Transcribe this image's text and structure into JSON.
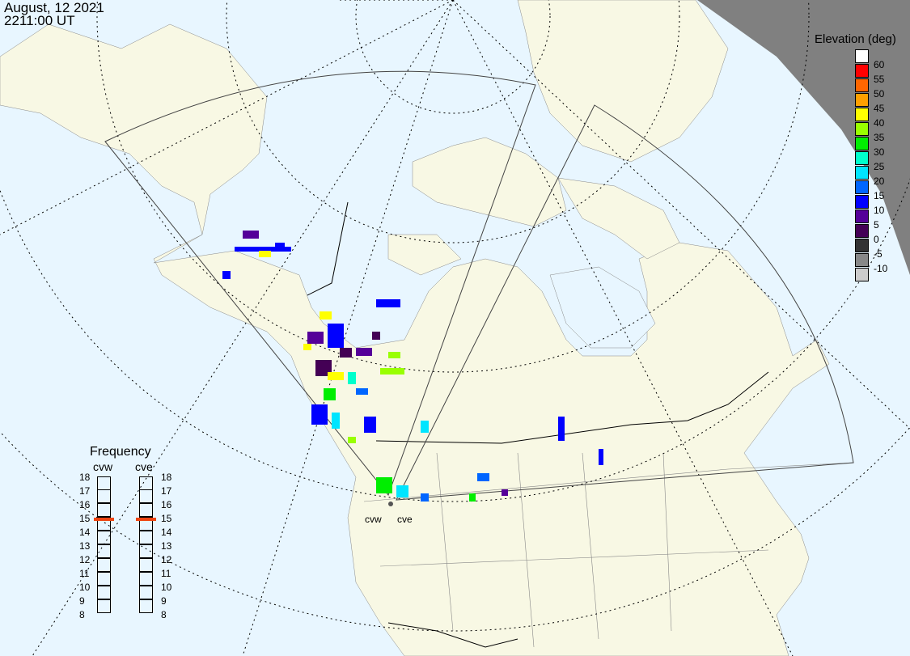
{
  "header": {
    "date": "August, 12 2021",
    "time": "2211:00 UT"
  },
  "colorbar": {
    "title": "Elevation (deg)",
    "colors": [
      "#ffffff",
      "#ff0000",
      "#ff6600",
      "#ffa000",
      "#ffff00",
      "#99ff00",
      "#00ee00",
      "#00ffcc",
      "#00e5ff",
      "#0066ff",
      "#0000ff",
      "#550099",
      "#440055",
      "#333333",
      "#888888",
      "#cccccc"
    ],
    "labels": [
      "60",
      "55",
      "50",
      "45",
      "40",
      "35",
      "30",
      "25",
      "20",
      "15",
      "10",
      "5",
      "0",
      "-5",
      "-10"
    ]
  },
  "frequency": {
    "title": "Frequency",
    "unit_scale": [
      "18",
      "17",
      "16",
      "15",
      "14",
      "13",
      "12",
      "11",
      "10",
      "9",
      "8"
    ],
    "radars": [
      {
        "name": "cvw",
        "value_mhz": 14.9
      },
      {
        "name": "cve",
        "value_mhz": 14.9
      }
    ],
    "marker_color": "#ee4411"
  },
  "sites": [
    "cvw",
    "cve"
  ],
  "colors": {
    "ocean": "#e8f6ff",
    "land": "#f8f8e4",
    "night": "#808080"
  }
}
